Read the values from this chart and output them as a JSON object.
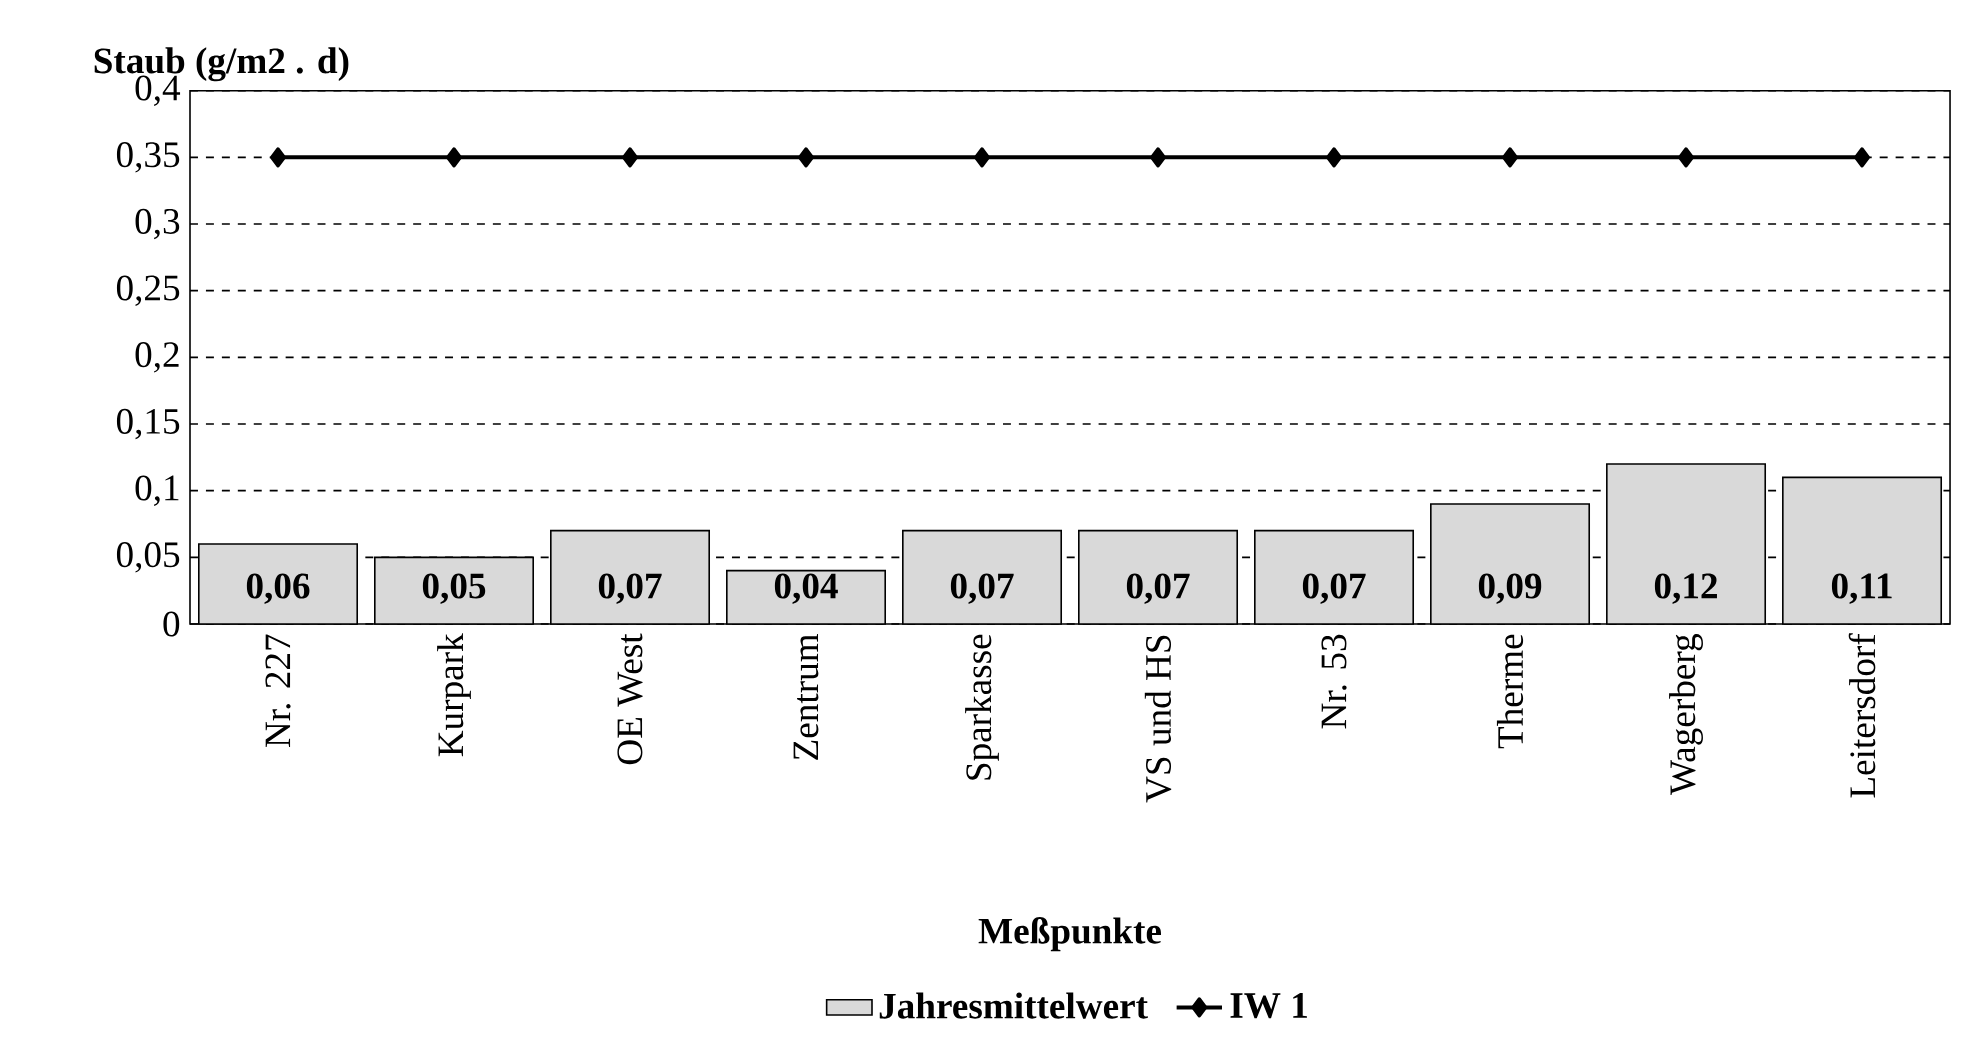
{
  "chart_data": {
    "type": "bar",
    "ylabel": "Staub (g/m2 . d)",
    "xlabel": "Meßpunkte",
    "categories": [
      "Nr. 227",
      "Kurpark",
      "OE West",
      "Zentrum",
      "Sparkasse",
      "VS und HS",
      "Nr. 53",
      "Therme",
      "Wagerberg",
      "Leitersdorf"
    ],
    "series": [
      {
        "name": "Jahresmittelwert",
        "color": "#d9d9d9",
        "values": [
          0.06,
          0.05,
          0.07,
          0.04,
          0.07,
          0.07,
          0.07,
          0.09,
          0.12,
          0.11
        ],
        "value_labels": [
          "0,06",
          "0,05",
          "0,07",
          "0,04",
          "0,07",
          "0,07",
          "0,07",
          "0,09",
          "0,12",
          "0,11"
        ]
      },
      {
        "name": "IW 1",
        "type": "line",
        "color": "#000000",
        "marker": "diamond",
        "values": [
          0.35,
          0.35,
          0.35,
          0.35,
          0.35,
          0.35,
          0.35,
          0.35,
          0.35,
          0.35
        ]
      }
    ],
    "ylim": [
      0,
      0.4
    ],
    "yticks": [
      0,
      {
        "value": 0.05,
        "label": "0,05"
      },
      {
        "value": 0.1,
        "label": "0,1"
      },
      {
        "value": 0.15,
        "label": "0,15"
      },
      {
        "value": 0.2,
        "label": "0,2"
      },
      {
        "value": 0.25,
        "label": "0,25"
      },
      {
        "value": 0.3,
        "label": "0,3"
      },
      {
        "value": 0.35,
        "label": "0,35"
      },
      {
        "value": 0.4,
        "label": "0,4"
      }
    ],
    "grid": "y",
    "legend": "bottom"
  }
}
